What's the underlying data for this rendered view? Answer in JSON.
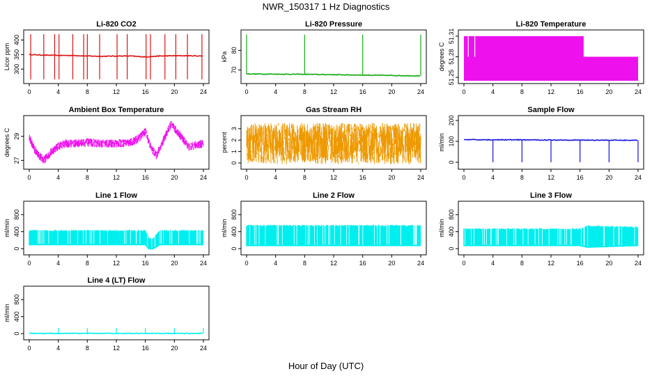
{
  "title": "NWR_150317  1 Hz Diagnostics",
  "xlabel": "Hour of Day (UTC)",
  "chart_data": [
    {
      "type": "line",
      "title": "Li-820 CO2",
      "ylabel": "Licor ppm",
      "color": "#dd1111",
      "xlim": [
        0,
        24
      ],
      "ylim": [
        260,
        425
      ],
      "yticks": [
        300,
        350,
        400
      ],
      "xticks": [
        0,
        4,
        8,
        12,
        16,
        20,
        24
      ],
      "series": [
        {
          "x": [
            0,
            2,
            4,
            6,
            8,
            10,
            12,
            14,
            16,
            18,
            20,
            22,
            24
          ],
          "values": [
            350,
            348,
            347,
            347,
            345,
            344,
            345,
            345,
            342,
            345,
            346,
            346,
            345
          ]
        }
      ],
      "spikes_hours": [
        0.2,
        2,
        3.5,
        4.1,
        6,
        7.5,
        8,
        9.7,
        12.1,
        13.5,
        16.1,
        16.7,
        18.7,
        20.2,
        21.8,
        23.8
      ],
      "spike_max": 420,
      "dip_min": 265
    },
    {
      "type": "line",
      "title": "Li-820 Pressure",
      "ylabel": "kPa",
      "color": "#11aa11",
      "xlim": [
        0,
        24
      ],
      "ylim": [
        64.5,
        89
      ],
      "yticks": [
        70,
        80
      ],
      "xticks": [
        0,
        4,
        8,
        12,
        16,
        20,
        24
      ],
      "series": [
        {
          "x": [
            0,
            4,
            8,
            12,
            16,
            20,
            24
          ],
          "values": [
            68,
            67.9,
            67.8,
            67.6,
            67.4,
            67.2,
            67
          ]
        }
      ],
      "spikes_hours": [
        0,
        8,
        16,
        24
      ],
      "spike_max": 88
    },
    {
      "type": "area",
      "title": "Li-820 Temperature",
      "ylabel": "degrees C",
      "color": "#ee11ee",
      "xlim": [
        0,
        24
      ],
      "ylim": [
        51.245,
        51.315
      ],
      "yticks": [
        51.25,
        51.28,
        51.31
      ],
      "xticks": [
        0,
        4,
        8,
        12,
        16,
        20,
        24
      ],
      "series": [
        {
          "x": [
            0,
            16.5,
            16.5,
            24
          ],
          "values": [
            51.31,
            51.31,
            51.28,
            51.28
          ]
        }
      ]
    },
    {
      "type": "line",
      "title": "Ambient Box Temperature",
      "ylabel": "degrees C",
      "color": "#ee11ee",
      "xlim": [
        0,
        24
      ],
      "ylim": [
        26.5,
        30.5
      ],
      "yticks": [
        27,
        29
      ],
      "xticks": [
        0,
        4,
        8,
        12,
        16,
        20,
        24
      ],
      "series": [
        {
          "x": [
            0,
            1,
            2,
            3,
            4,
            5,
            6,
            8,
            10,
            12,
            14,
            15,
            16,
            16.8,
            17.5,
            18.5,
            19.5,
            20.5,
            22,
            23,
            24
          ],
          "values": [
            28.8,
            27.6,
            27.0,
            27.7,
            28.2,
            28.4,
            28.4,
            28.5,
            28.4,
            28.4,
            28.5,
            28.8,
            29.4,
            28.0,
            27.4,
            28.7,
            30.0,
            29.3,
            28.1,
            28.3,
            28.4
          ]
        }
      ],
      "noise": 0.35
    },
    {
      "type": "line",
      "title": "Gas Stream RH",
      "ylabel": "percent",
      "color": "#ee9900",
      "xlim": [
        0,
        24
      ],
      "ylim": [
        -0.3,
        3.9
      ],
      "yticks": [
        0,
        1,
        2,
        3
      ],
      "xticks": [
        0,
        4,
        8,
        12,
        16,
        20,
        24
      ],
      "series": [
        {
          "x": [
            0,
            24
          ],
          "values": [
            1.7,
            1.7
          ]
        }
      ],
      "noise": 1.8
    },
    {
      "type": "line",
      "title": "Sample Flow",
      "ylabel": "ml/min",
      "color": "#1111dd",
      "xlim": [
        0,
        24
      ],
      "ylim": [
        -20,
        210
      ],
      "yticks": [
        0,
        100,
        200
      ],
      "xticks": [
        0,
        4,
        8,
        12,
        16,
        20,
        24
      ],
      "series": [
        {
          "x": [
            0,
            24
          ],
          "values": [
            108,
            105
          ]
        }
      ],
      "spikes_hours": [
        4,
        8,
        12,
        16,
        20,
        24
      ],
      "dip_min": 0
    },
    {
      "type": "area",
      "title": "Line 1 Flow",
      "ylabel": "ml/min",
      "color": "#00eeee",
      "xlim": [
        0,
        24
      ],
      "ylim": [
        -80,
        1050
      ],
      "yticks": [
        0,
        400,
        800
      ],
      "xticks": [
        0,
        4,
        8,
        12,
        16,
        20,
        24
      ],
      "series": [
        {
          "name": "upper",
          "x": [
            0,
            16,
            16.5,
            17,
            18,
            24
          ],
          "values": [
            440,
            440,
            260,
            250,
            440,
            440
          ]
        },
        {
          "name": "lower",
          "x": [
            0,
            16,
            16.5,
            17,
            18,
            24
          ],
          "values": [
            80,
            80,
            -20,
            -20,
            80,
            80
          ]
        }
      ]
    },
    {
      "type": "area",
      "title": "Line 2 Flow",
      "ylabel": "ml/min",
      "color": "#00eeee",
      "xlim": [
        0,
        24
      ],
      "ylim": [
        -80,
        1050
      ],
      "yticks": [
        0,
        400,
        800
      ],
      "xticks": [
        0,
        4,
        8,
        12,
        16,
        20,
        24
      ],
      "series": [
        {
          "name": "upper",
          "x": [
            0,
            24
          ],
          "values": [
            560,
            560
          ]
        },
        {
          "name": "lower",
          "x": [
            0,
            24
          ],
          "values": [
            60,
            60
          ]
        }
      ]
    },
    {
      "type": "area",
      "title": "Line 3 Flow",
      "ylabel": "ml/min",
      "color": "#00eeee",
      "xlim": [
        0,
        24
      ],
      "ylim": [
        -80,
        1050
      ],
      "yticks": [
        0,
        400,
        800
      ],
      "xticks": [
        0,
        4,
        8,
        12,
        16,
        20,
        24
      ],
      "series": [
        {
          "name": "upper",
          "x": [
            0,
            16,
            17,
            24
          ],
          "values": [
            480,
            480,
            550,
            520
          ]
        },
        {
          "name": "lower",
          "x": [
            0,
            16,
            17,
            24
          ],
          "values": [
            60,
            60,
            20,
            60
          ]
        }
      ]
    },
    {
      "type": "line",
      "title": "Line 4 (LT) Flow",
      "ylabel": "ml/min",
      "color": "#00eeee",
      "xlim": [
        0,
        24
      ],
      "ylim": [
        -80,
        1050
      ],
      "yticks": [
        0,
        400,
        800
      ],
      "xticks": [
        0,
        4,
        8,
        12,
        16,
        20,
        24
      ],
      "series": [
        {
          "x": [
            0,
            24
          ],
          "values": [
            5,
            5
          ]
        }
      ],
      "spikes_hours": [
        4,
        8,
        12,
        16,
        20,
        24
      ],
      "spike_max": 130
    }
  ]
}
